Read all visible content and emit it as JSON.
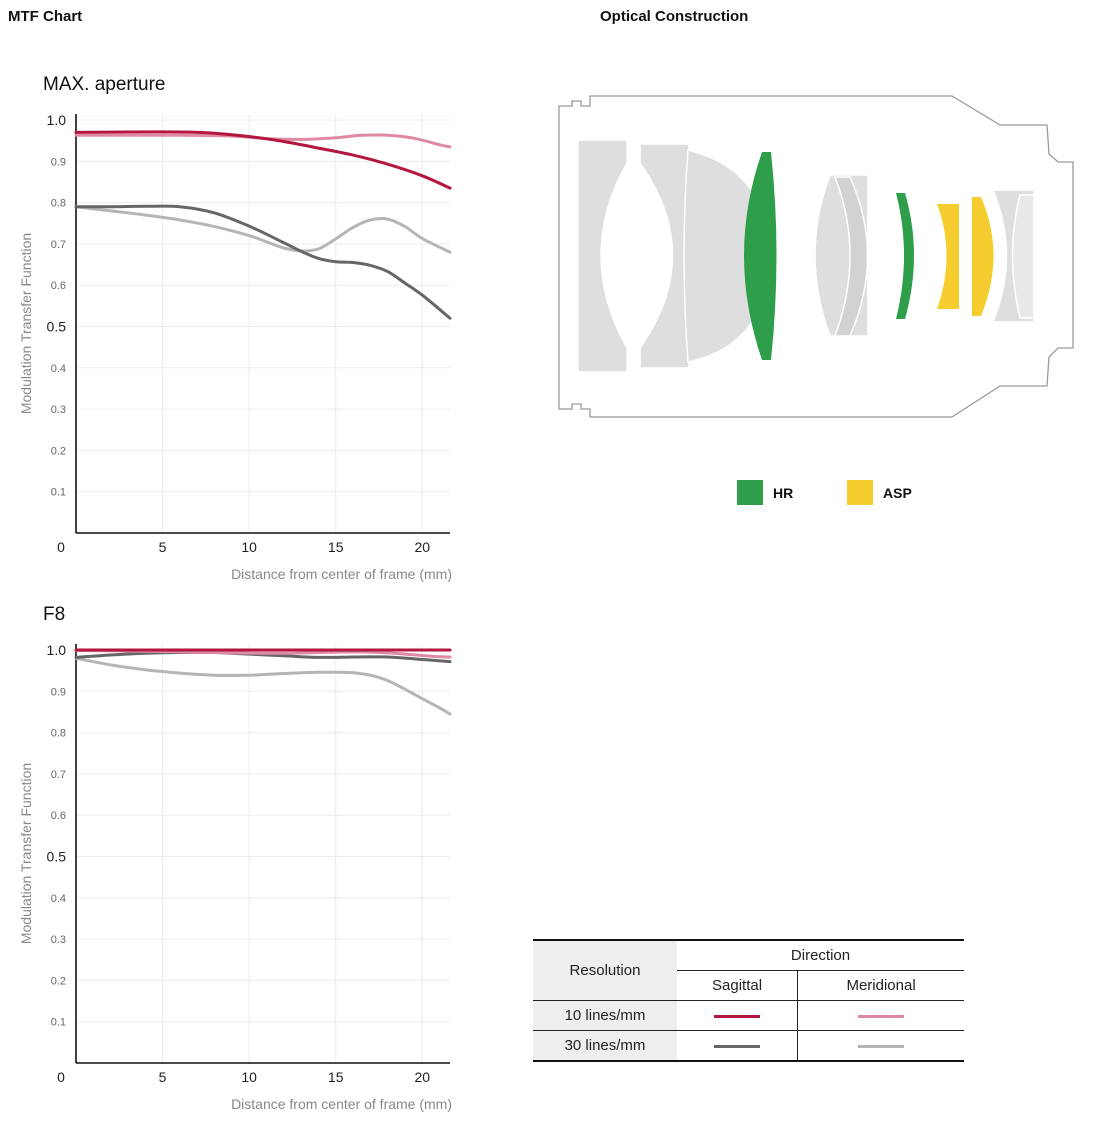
{
  "header": {
    "mtf_title": "MTF Chart",
    "optical_title": "Optical Construction"
  },
  "colors": {
    "sagittal_10": "#b3163f",
    "meridional_10": "#df8aa2",
    "sagittal_30": "#666666",
    "meridional_30": "#b5b5b5",
    "hr": "#2f9e4b",
    "asp": "#f6cd2f",
    "lens_body": "#dedede"
  },
  "chart_data": [
    {
      "type": "line",
      "title": "MAX. aperture",
      "xlabel": "Distance from center of frame (mm)",
      "ylabel": "Modulation Transfer Function",
      "xlim": [
        0,
        21.6
      ],
      "ylim": [
        0,
        1.0
      ],
      "x_ticks": [
        0,
        5,
        10,
        15,
        20
      ],
      "y_ticks": [
        "0",
        "0.1",
        "0.2",
        "0.3",
        "0.4",
        "0.5",
        "0.6",
        "0.7",
        "0.8",
        "0.9",
        "1.0"
      ],
      "grid": true,
      "series": [
        {
          "key": "sagittal_10",
          "x": [
            0,
            3,
            6,
            8,
            10,
            12,
            14,
            16,
            18,
            20,
            21.6
          ],
          "y": [
            0.97,
            0.971,
            0.971,
            0.968,
            0.96,
            0.948,
            0.932,
            0.915,
            0.893,
            0.865,
            0.835
          ]
        },
        {
          "key": "meridional_10",
          "x": [
            0,
            3,
            6,
            9,
            11,
            13,
            15,
            16.5,
            18,
            19.5,
            21,
            21.6
          ],
          "y": [
            0.963,
            0.963,
            0.963,
            0.961,
            0.955,
            0.953,
            0.957,
            0.963,
            0.963,
            0.956,
            0.94,
            0.935
          ]
        },
        {
          "key": "sagittal_30",
          "x": [
            0,
            2,
            4,
            6,
            8,
            10,
            12,
            13,
            14,
            15,
            16,
            17,
            18,
            19,
            20,
            21.6
          ],
          "y": [
            0.79,
            0.79,
            0.791,
            0.79,
            0.775,
            0.743,
            0.703,
            0.682,
            0.665,
            0.657,
            0.655,
            0.648,
            0.633,
            0.605,
            0.576,
            0.52
          ]
        },
        {
          "key": "meridional_30",
          "x": [
            0,
            2,
            4,
            6,
            8,
            10,
            11,
            12,
            13,
            14,
            15,
            16,
            17,
            18,
            19,
            20,
            21.6
          ],
          "y": [
            0.79,
            0.78,
            0.77,
            0.758,
            0.742,
            0.72,
            0.705,
            0.69,
            0.683,
            0.688,
            0.712,
            0.74,
            0.758,
            0.76,
            0.742,
            0.713,
            0.68
          ]
        }
      ]
    },
    {
      "type": "line",
      "title": "F8",
      "xlabel": "Distance from center of frame (mm)",
      "ylabel": "Modulation Transfer Function",
      "xlim": [
        0,
        21.6
      ],
      "ylim": [
        0,
        1.0
      ],
      "x_ticks": [
        0,
        5,
        10,
        15,
        20
      ],
      "y_ticks": [
        "0",
        "0.1",
        "0.2",
        "0.3",
        "0.4",
        "0.5",
        "0.6",
        "0.7",
        "0.8",
        "0.9",
        "1.0"
      ],
      "grid": true,
      "series": [
        {
          "key": "sagittal_10",
          "x": [
            0,
            5,
            10,
            15,
            20,
            21.6
          ],
          "y": [
            1.0,
            1.0,
            1.0,
            1.0,
            1.0,
            1.0
          ]
        },
        {
          "key": "meridional_10",
          "x": [
            0,
            4,
            8,
            12,
            15,
            17,
            19,
            20.5,
            21.6
          ],
          "y": [
            0.999,
            0.997,
            0.994,
            0.992,
            0.995,
            0.995,
            0.99,
            0.985,
            0.983
          ]
        },
        {
          "key": "sagittal_30",
          "x": [
            0,
            2,
            4,
            6,
            8,
            10,
            12,
            14,
            16,
            18,
            20,
            21.6
          ],
          "y": [
            0.982,
            0.988,
            0.992,
            0.994,
            0.994,
            0.99,
            0.986,
            0.982,
            0.983,
            0.983,
            0.977,
            0.972
          ]
        },
        {
          "key": "meridional_30",
          "x": [
            0,
            2,
            4,
            6,
            8,
            10,
            11,
            12,
            13,
            14,
            15,
            16,
            17,
            18,
            19,
            20,
            21,
            21.6
          ],
          "y": [
            0.98,
            0.964,
            0.952,
            0.944,
            0.939,
            0.939,
            0.941,
            0.943,
            0.945,
            0.946,
            0.946,
            0.945,
            0.939,
            0.926,
            0.905,
            0.882,
            0.86,
            0.845
          ]
        }
      ]
    }
  ],
  "optical_legend": {
    "hr_label": "HR",
    "asp_label": "ASP"
  },
  "direction_table": {
    "resolution_header": "Resolution",
    "direction_header": "Direction",
    "sagittal_header": "Sagittal",
    "meridional_header": "Meridional",
    "rows": [
      {
        "label": "10 lines/mm"
      },
      {
        "label": "30 lines/mm"
      }
    ]
  }
}
